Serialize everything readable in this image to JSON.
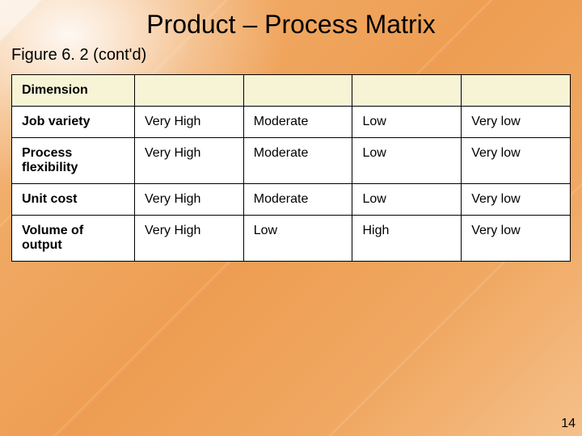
{
  "title": "Product – Process Matrix",
  "subtitle": "Figure 6. 2 (cont'd)",
  "table": {
    "header": {
      "dimension": "Dimension",
      "c1": "",
      "c2": "",
      "c3": "",
      "c4": ""
    },
    "rows": [
      {
        "dimension": "Job variety",
        "c1": "Very High",
        "c2": "Moderate",
        "c3": "Low",
        "c4": "Very low"
      },
      {
        "dimension": "Process flexibility",
        "c1": "Very High",
        "c2": "Moderate",
        "c3": "Low",
        "c4": "Very low"
      },
      {
        "dimension": "Unit cost",
        "c1": "Very High",
        "c2": "Moderate",
        "c3": "Low",
        "c4": "Very low"
      },
      {
        "dimension": "Volume of output",
        "c1": "Very High",
        "c2": "Low",
        "c3": "High",
        "c4": "Very low"
      }
    ]
  },
  "page_number": "14",
  "colors": {
    "header_bg": "#f6f4d5",
    "border": "#000000",
    "slide_accent": "#f0a862"
  }
}
